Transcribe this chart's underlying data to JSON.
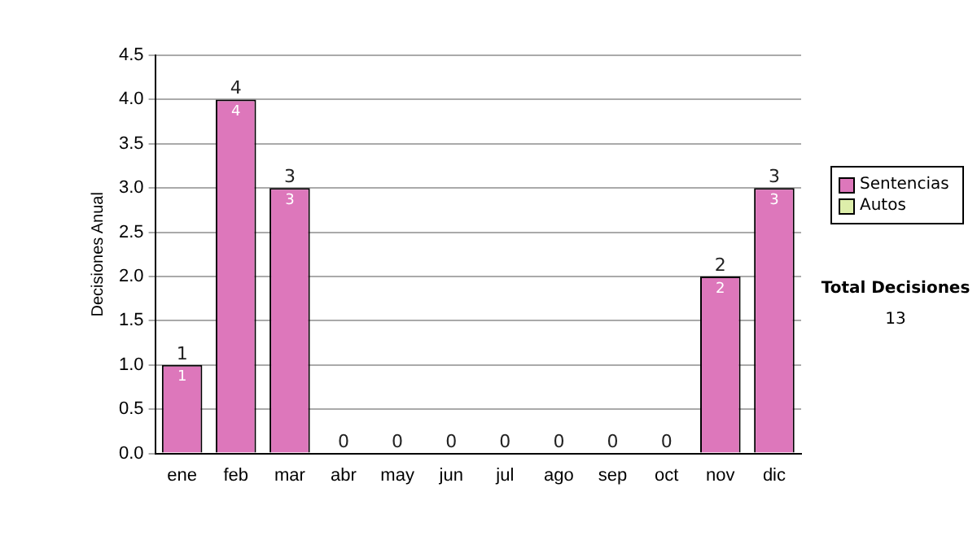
{
  "chart_data": {
    "type": "bar",
    "stacked": true,
    "ylabel": "Decisiones Anual",
    "categories": [
      "ene",
      "feb",
      "mar",
      "abr",
      "may",
      "jun",
      "jul",
      "ago",
      "sep",
      "oct",
      "nov",
      "dic"
    ],
    "series": [
      {
        "name": "Sentencias",
        "color": "#dd77bb",
        "values": [
          1,
          4,
          3,
          0,
          0,
          0,
          0,
          0,
          0,
          0,
          2,
          3
        ],
        "value_labels": [
          "1",
          "4",
          "3",
          null,
          null,
          null,
          null,
          null,
          null,
          null,
          "2",
          "3"
        ]
      },
      {
        "name": "Autos",
        "color": "#ddeeaa",
        "values": [
          0,
          0,
          0,
          0,
          0,
          0,
          0,
          0,
          0,
          0,
          0,
          0
        ]
      }
    ],
    "totals": [
      "1",
      "4",
      "3",
      "0",
      "0",
      "0",
      "0",
      "0",
      "0",
      "0",
      "2",
      "3"
    ],
    "ylim": [
      0,
      4.5
    ],
    "yticks": [
      {
        "value": 0,
        "label": "0.0"
      },
      {
        "value": 0.5,
        "label": "0.5"
      },
      {
        "value": 1,
        "label": "1.0"
      },
      {
        "value": 1.5,
        "label": "1.5"
      },
      {
        "value": 2,
        "label": "2.0"
      },
      {
        "value": 2.5,
        "label": "2.5"
      },
      {
        "value": 3,
        "label": "3.0"
      },
      {
        "value": 3.5,
        "label": "3.5"
      },
      {
        "value": 4,
        "label": "4.0"
      },
      {
        "value": 4.5,
        "label": "4.5"
      }
    ],
    "grid": "y",
    "legend": "right",
    "annotations": [
      "Total Decisiones",
      "13"
    ]
  }
}
